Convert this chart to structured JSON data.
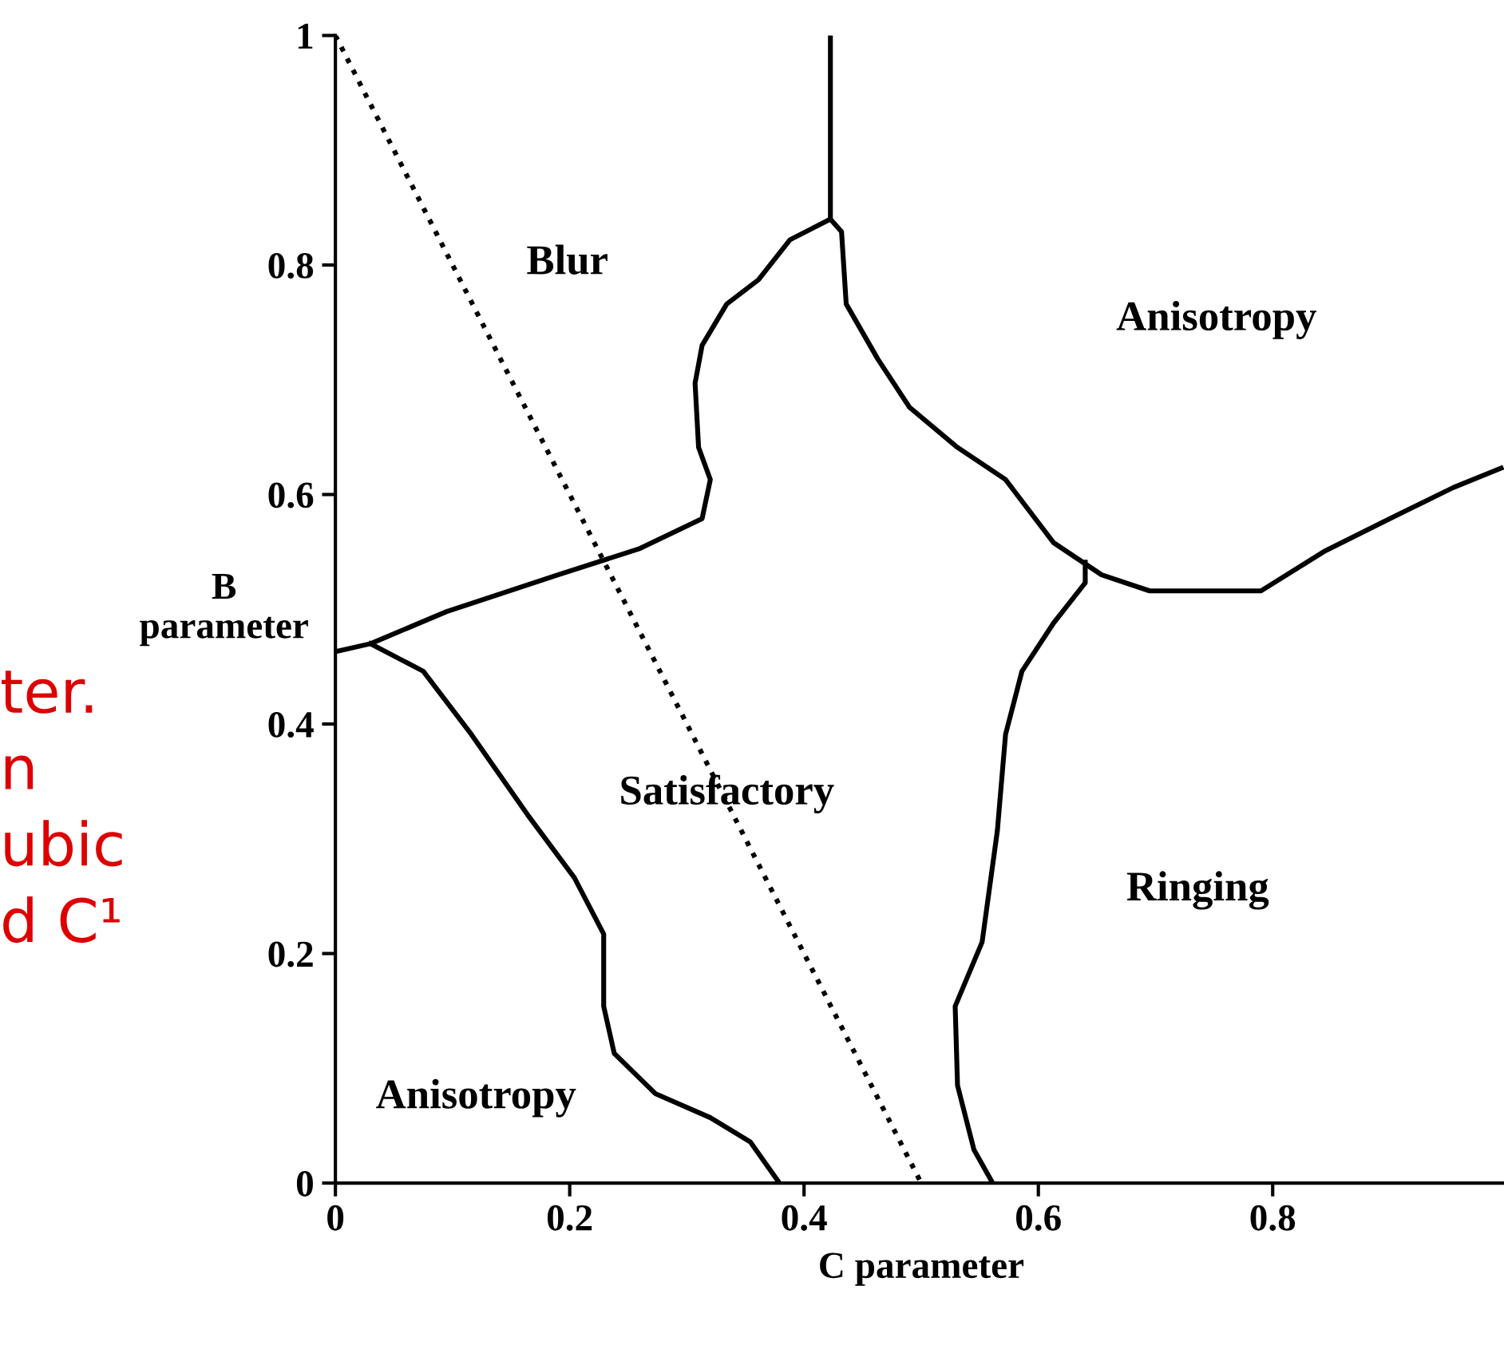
{
  "chart_data": {
    "type": "line",
    "xlabel": "C parameter",
    "ylabel": "B\nparameter",
    "xlim": [
      0,
      1
    ],
    "ylim": [
      0,
      1
    ],
    "xticks": [
      0,
      0.2,
      0.4,
      0.6,
      0.8
    ],
    "yticks": [
      0,
      0.2,
      0.4,
      0.6,
      0.8,
      1
    ],
    "grid": false,
    "legend": false,
    "marker": "none",
    "series": [
      {
        "color": "#000000",
        "line_style": "dotted",
        "x": [
          0,
          0.5
        ],
        "values": [
          1,
          0
        ]
      },
      {
        "color": "#000000",
        "line_style": "solid",
        "x": [
          0.4225,
          0.4225
        ],
        "values": [
          0.84,
          1
        ]
      },
      {
        "color": "#000000",
        "line_style": "solid",
        "x": [
          0,
          0.03,
          0.095,
          0.19,
          0.26,
          0.313,
          0.32,
          0.31,
          0.307,
          0.313,
          0.334,
          0.361,
          0.388,
          0.4225,
          0.432,
          0.436,
          0.463,
          0.49,
          0.531,
          0.572,
          0.613,
          0.654,
          0.695,
          0.79,
          0.845,
          0.9,
          0.954,
          0.995
        ],
        "values": [
          0.463,
          0.47,
          0.498,
          0.53,
          0.553,
          0.579,
          0.613,
          0.641,
          0.697,
          0.73,
          0.766,
          0.787,
          0.822,
          0.84,
          0.829,
          0.766,
          0.718,
          0.676,
          0.641,
          0.613,
          0.558,
          0.53,
          0.516,
          0.516,
          0.551,
          0.579,
          0.606,
          0.623
        ]
      },
      {
        "color": "#000000",
        "line_style": "solid",
        "x": [
          0.03,
          0.075,
          0.116,
          0.164,
          0.204,
          0.229,
          0.229,
          0.238,
          0.273,
          0.32,
          0.354,
          0.379
        ],
        "values": [
          0.47,
          0.446,
          0.391,
          0.321,
          0.266,
          0.217,
          0.154,
          0.113,
          0.078,
          0.057,
          0.036,
          0
        ]
      },
      {
        "color": "#000000",
        "line_style": "solid",
        "x": [
          0.64,
          0.64,
          0.613,
          0.586,
          0.572,
          0.565,
          0.552,
          0.529,
          0.531,
          0.545,
          0.561
        ],
        "values": [
          0.541,
          0.523,
          0.488,
          0.446,
          0.391,
          0.307,
          0.21,
          0.154,
          0.085,
          0.029,
          0
        ]
      }
    ],
    "annotations": [
      "Blur",
      "Anisotropy",
      "Satisfactory",
      "Ringing",
      "Anisotropy",
      "ter.",
      "n",
      "ubic",
      "d C¹"
    ]
  }
}
